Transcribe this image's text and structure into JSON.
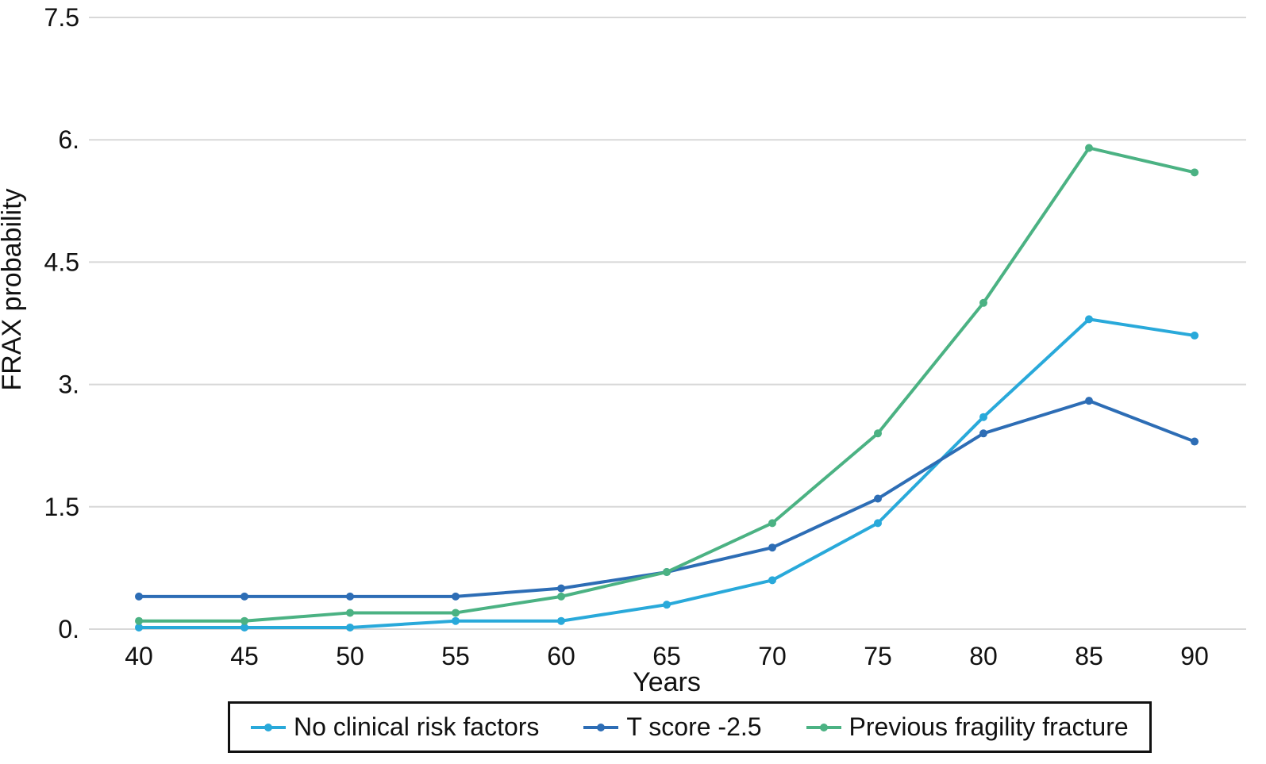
{
  "chart_data": {
    "type": "line",
    "title": "",
    "xlabel": "Years",
    "ylabel": "FRAX probability",
    "x": [
      40,
      45,
      50,
      55,
      60,
      65,
      70,
      75,
      80,
      85,
      90
    ],
    "x_tick_labels": [
      "40",
      "45",
      "50",
      "55",
      "60",
      "65",
      "70",
      "75",
      "80",
      "85",
      "90"
    ],
    "y_ticks": [
      0,
      1.5,
      3,
      4.5,
      6,
      7.5
    ],
    "y_tick_labels": [
      "0.",
      "1.5",
      "3.",
      "4.5",
      "6.",
      "7.5"
    ],
    "ylim": [
      0,
      7.5
    ],
    "grid": "horizontal",
    "gridline_color": "#d8d8d8",
    "legend_position": "bottom",
    "series": [
      {
        "name": "No clinical risk factors",
        "color": "#29a9da",
        "values": [
          0.02,
          0.02,
          0.02,
          0.1,
          0.1,
          0.3,
          0.6,
          1.3,
          2.6,
          3.8,
          3.6
        ]
      },
      {
        "name": "T score -2.5",
        "color": "#2d6db5",
        "values": [
          0.4,
          0.4,
          0.4,
          0.4,
          0.5,
          0.7,
          1.0,
          1.6,
          2.4,
          2.8,
          2.3
        ]
      },
      {
        "name": "Previous fragility fracture",
        "color": "#4bb283",
        "values": [
          0.1,
          0.1,
          0.2,
          0.2,
          0.4,
          0.7,
          1.3,
          2.4,
          4.0,
          5.9,
          5.6
        ]
      }
    ]
  }
}
